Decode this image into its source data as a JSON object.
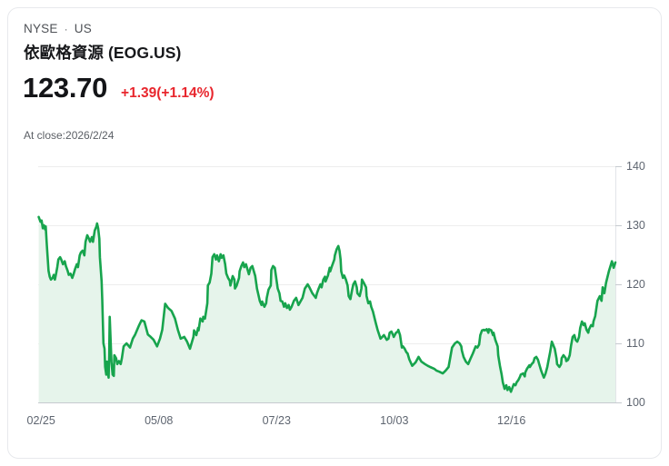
{
  "header": {
    "exchange": "NYSE",
    "separator": "·",
    "region": "US",
    "title": "依歐格資源 (EOG.US)"
  },
  "quote": {
    "price": "123.70",
    "change": "+1.39(+1.14%)",
    "as_of": "At close:2026/2/24",
    "change_color": "#e8262d"
  },
  "chart_data": {
    "type": "area",
    "title": "EOG.US 1-year price",
    "xlabel": "",
    "ylabel": "",
    "ylim": [
      100,
      140
    ],
    "baseline": 100,
    "grid": true,
    "y_axis_side": "right",
    "y_ticks": [
      140,
      130,
      120,
      110,
      100
    ],
    "x_ticks": [
      {
        "label": "02/25",
        "pos": 0.005
      },
      {
        "label": "05/08",
        "pos": 0.209
      },
      {
        "label": "07/23",
        "pos": 0.413
      },
      {
        "label": "10/03",
        "pos": 0.617
      },
      {
        "label": "12/16",
        "pos": 0.82
      }
    ],
    "line_color": "#17a44d",
    "fill_color": "#e6f4eb",
    "grid_color": "#ededed",
    "baseline_color": "#c6cacf",
    "axis_line_color": "#e2e5e9",
    "tick_mark_color": "#c6cacf",
    "points": [
      [
        0.001,
        131.4
      ],
      [
        0.004,
        130.6
      ],
      [
        0.006,
        130.8
      ],
      [
        0.008,
        129.5
      ],
      [
        0.01,
        130.0
      ],
      [
        0.012,
        129.3
      ],
      [
        0.013,
        129.8
      ],
      [
        0.015,
        126.7
      ],
      [
        0.018,
        122.3
      ],
      [
        0.02,
        121.3
      ],
      [
        0.022,
        120.8
      ],
      [
        0.025,
        121.1
      ],
      [
        0.027,
        121.6
      ],
      [
        0.029,
        120.8
      ],
      [
        0.031,
        121.8
      ],
      [
        0.033,
        122.9
      ],
      [
        0.035,
        124.2
      ],
      [
        0.038,
        124.6
      ],
      [
        0.04,
        124.2
      ],
      [
        0.043,
        123.4
      ],
      [
        0.046,
        123.9
      ],
      [
        0.048,
        123.1
      ],
      [
        0.051,
        122.3
      ],
      [
        0.053,
        121.6
      ],
      [
        0.056,
        121.8
      ],
      [
        0.059,
        121.1
      ],
      [
        0.061,
        121.6
      ],
      [
        0.064,
        122.6
      ],
      [
        0.067,
        123.4
      ],
      [
        0.069,
        122.9
      ],
      [
        0.072,
        124.9
      ],
      [
        0.074,
        125.4
      ],
      [
        0.077,
        125.7
      ],
      [
        0.08,
        124.9
      ],
      [
        0.082,
        127.2
      ],
      [
        0.085,
        128.3
      ],
      [
        0.088,
        127.7
      ],
      [
        0.09,
        127.2
      ],
      [
        0.093,
        128.0
      ],
      [
        0.095,
        127.2
      ],
      [
        0.098,
        129.1
      ],
      [
        0.101,
        129.8
      ],
      [
        0.102,
        130.3
      ],
      [
        0.104,
        129.5
      ],
      [
        0.106,
        127.7
      ],
      [
        0.107,
        124.6
      ],
      [
        0.11,
        120.5
      ],
      [
        0.111,
        117.4
      ],
      [
        0.113,
        110.0
      ],
      [
        0.115,
        109.1
      ],
      [
        0.116,
        106.0
      ],
      [
        0.118,
        104.7
      ],
      [
        0.119,
        106.9
      ],
      [
        0.121,
        104.9
      ],
      [
        0.122,
        104.2
      ],
      [
        0.123,
        108.0
      ],
      [
        0.124,
        114.5
      ],
      [
        0.127,
        106.9
      ],
      [
        0.129,
        104.7
      ],
      [
        0.131,
        104.5
      ],
      [
        0.132,
        108.0
      ],
      [
        0.135,
        107.5
      ],
      [
        0.137,
        106.5
      ],
      [
        0.14,
        107.0
      ],
      [
        0.143,
        106.5
      ],
      [
        0.145,
        107.5
      ],
      [
        0.148,
        109.5
      ],
      [
        0.153,
        110.0
      ],
      [
        0.159,
        109.3
      ],
      [
        0.164,
        110.8
      ],
      [
        0.168,
        111.5
      ],
      [
        0.175,
        113.1
      ],
      [
        0.179,
        113.9
      ],
      [
        0.184,
        113.7
      ],
      [
        0.19,
        111.5
      ],
      [
        0.195,
        111.1
      ],
      [
        0.2,
        110.6
      ],
      [
        0.206,
        109.5
      ],
      [
        0.211,
        110.8
      ],
      [
        0.215,
        112.3
      ],
      [
        0.22,
        116.7
      ],
      [
        0.225,
        116.0
      ],
      [
        0.231,
        115.5
      ],
      [
        0.237,
        114.2
      ],
      [
        0.242,
        112.3
      ],
      [
        0.247,
        110.8
      ],
      [
        0.253,
        111.1
      ],
      [
        0.258,
        110.3
      ],
      [
        0.263,
        109.1
      ],
      [
        0.269,
        111.1
      ],
      [
        0.27,
        112.2
      ],
      [
        0.274,
        111.4
      ],
      [
        0.277,
        112.6
      ],
      [
        0.278,
        112.2
      ],
      [
        0.281,
        114.2
      ],
      [
        0.285,
        113.7
      ],
      [
        0.286,
        114.5
      ],
      [
        0.289,
        114.2
      ],
      [
        0.293,
        116.8
      ],
      [
        0.294,
        119.8
      ],
      [
        0.297,
        120.3
      ],
      [
        0.3,
        121.8
      ],
      [
        0.302,
        124.6
      ],
      [
        0.305,
        125.1
      ],
      [
        0.308,
        124.2
      ],
      [
        0.31,
        124.9
      ],
      [
        0.313,
        123.9
      ],
      [
        0.316,
        125.1
      ],
      [
        0.318,
        124.5
      ],
      [
        0.321,
        124.9
      ],
      [
        0.324,
        123.4
      ],
      [
        0.326,
        121.8
      ],
      [
        0.329,
        121.1
      ],
      [
        0.332,
        120.6
      ],
      [
        0.333,
        119.8
      ],
      [
        0.337,
        121.4
      ],
      [
        0.34,
        120.8
      ],
      [
        0.341,
        119.3
      ],
      [
        0.344,
        119.8
      ],
      [
        0.348,
        121.1
      ],
      [
        0.349,
        122.2
      ],
      [
        0.352,
        123.1
      ],
      [
        0.355,
        123.7
      ],
      [
        0.357,
        122.9
      ],
      [
        0.36,
        123.4
      ],
      [
        0.363,
        122.4
      ],
      [
        0.365,
        121.7
      ],
      [
        0.368,
        122.8
      ],
      [
        0.371,
        123.1
      ],
      [
        0.373,
        122.4
      ],
      [
        0.376,
        121.4
      ],
      [
        0.379,
        119.3
      ],
      [
        0.381,
        118.5
      ],
      [
        0.384,
        117.2
      ],
      [
        0.387,
        116.5
      ],
      [
        0.388,
        117.1
      ],
      [
        0.392,
        116.2
      ],
      [
        0.395,
        116.8
      ],
      [
        0.396,
        117.7
      ],
      [
        0.399,
        119.1
      ],
      [
        0.403,
        119.8
      ],
      [
        0.404,
        122.4
      ],
      [
        0.407,
        123.1
      ],
      [
        0.41,
        122.8
      ],
      [
        0.412,
        121.4
      ],
      [
        0.415,
        119.3
      ],
      [
        0.418,
        118.5
      ],
      [
        0.42,
        117.2
      ],
      [
        0.423,
        117.1
      ],
      [
        0.426,
        116.2
      ],
      [
        0.428,
        116.8
      ],
      [
        0.431,
        116.0
      ],
      [
        0.434,
        116.5
      ],
      [
        0.436,
        115.7
      ],
      [
        0.439,
        116.2
      ],
      [
        0.443,
        117.2
      ],
      [
        0.447,
        117.7
      ],
      [
        0.451,
        116.5
      ],
      [
        0.458,
        117.7
      ],
      [
        0.462,
        119.3
      ],
      [
        0.467,
        120.0
      ],
      [
        0.47,
        119.5
      ],
      [
        0.475,
        118.5
      ],
      [
        0.481,
        117.7
      ],
      [
        0.483,
        118.5
      ],
      [
        0.486,
        119.3
      ],
      [
        0.489,
        120.0
      ],
      [
        0.491,
        119.5
      ],
      [
        0.494,
        120.8
      ],
      [
        0.497,
        121.3
      ],
      [
        0.498,
        120.5
      ],
      [
        0.502,
        121.5
      ],
      [
        0.505,
        122.8
      ],
      [
        0.506,
        122.2
      ],
      [
        0.509,
        123.1
      ],
      [
        0.513,
        124.2
      ],
      [
        0.514,
        124.9
      ],
      [
        0.517,
        125.9
      ],
      [
        0.52,
        126.5
      ],
      [
        0.522,
        125.7
      ],
      [
        0.524,
        124.2
      ],
      [
        0.525,
        122.2
      ],
      [
        0.528,
        121.1
      ],
      [
        0.53,
        121.5
      ],
      [
        0.533,
        120.8
      ],
      [
        0.536,
        119.8
      ],
      [
        0.538,
        118.0
      ],
      [
        0.541,
        117.5
      ],
      [
        0.544,
        119.1
      ],
      [
        0.546,
        120.0
      ],
      [
        0.549,
        120.5
      ],
      [
        0.552,
        119.5
      ],
      [
        0.553,
        118.5
      ],
      [
        0.557,
        118.0
      ],
      [
        0.56,
        119.3
      ],
      [
        0.561,
        120.8
      ],
      [
        0.564,
        120.3
      ],
      [
        0.568,
        119.5
      ],
      [
        0.569,
        118.0
      ],
      [
        0.572,
        116.8
      ],
      [
        0.575,
        117.1
      ],
      [
        0.577,
        116.2
      ],
      [
        0.58,
        115.4
      ],
      [
        0.583,
        114.2
      ],
      [
        0.585,
        113.4
      ],
      [
        0.588,
        112.3
      ],
      [
        0.591,
        111.4
      ],
      [
        0.593,
        110.8
      ],
      [
        0.596,
        111.1
      ],
      [
        0.599,
        111.4
      ],
      [
        0.601,
        111.1
      ],
      [
        0.604,
        110.6
      ],
      [
        0.607,
        110.8
      ],
      [
        0.609,
        111.8
      ],
      [
        0.612,
        112.0
      ],
      [
        0.615,
        111.4
      ],
      [
        0.616,
        111.1
      ],
      [
        0.62,
        111.8
      ],
      [
        0.623,
        112.0
      ],
      [
        0.624,
        112.3
      ],
      [
        0.627,
        111.4
      ],
      [
        0.63,
        109.3
      ],
      [
        0.632,
        109.5
      ],
      [
        0.635,
        109.1
      ],
      [
        0.638,
        108.5
      ],
      [
        0.64,
        108.3
      ],
      [
        0.643,
        107.3
      ],
      [
        0.648,
        106.2
      ],
      [
        0.654,
        106.8
      ],
      [
        0.659,
        107.7
      ],
      [
        0.664,
        106.9
      ],
      [
        0.67,
        106.5
      ],
      [
        0.675,
        106.2
      ],
      [
        0.679,
        106.0
      ],
      [
        0.686,
        105.7
      ],
      [
        0.69,
        105.4
      ],
      [
        0.695,
        105.2
      ],
      [
        0.701,
        104.9
      ],
      [
        0.706,
        105.4
      ],
      [
        0.711,
        106.0
      ],
      [
        0.717,
        109.3
      ],
      [
        0.722,
        110.0
      ],
      [
        0.726,
        110.3
      ],
      [
        0.73,
        110.0
      ],
      [
        0.733,
        109.5
      ],
      [
        0.734,
        108.8
      ],
      [
        0.737,
        107.7
      ],
      [
        0.741,
        106.9
      ],
      [
        0.745,
        106.5
      ],
      [
        0.748,
        107.2
      ],
      [
        0.753,
        108.3
      ],
      [
        0.758,
        109.5
      ],
      [
        0.761,
        109.3
      ],
      [
        0.764,
        109.8
      ],
      [
        0.766,
        111.4
      ],
      [
        0.769,
        112.2
      ],
      [
        0.772,
        112.3
      ],
      [
        0.774,
        112.2
      ],
      [
        0.777,
        112.4
      ],
      [
        0.78,
        111.8
      ],
      [
        0.781,
        112.4
      ],
      [
        0.785,
        112.2
      ],
      [
        0.788,
        111.4
      ],
      [
        0.789,
        111.8
      ],
      [
        0.792,
        110.6
      ],
      [
        0.796,
        109.5
      ],
      [
        0.797,
        108.0
      ],
      [
        0.8,
        106.2
      ],
      [
        0.803,
        104.7
      ],
      [
        0.805,
        103.4
      ],
      [
        0.808,
        102.3
      ],
      [
        0.811,
        102.9
      ],
      [
        0.813,
        102.1
      ],
      [
        0.816,
        102.6
      ],
      [
        0.819,
        101.8
      ],
      [
        0.821,
        102.3
      ],
      [
        0.824,
        103.1
      ],
      [
        0.827,
        102.9
      ],
      [
        0.829,
        103.4
      ],
      [
        0.832,
        103.8
      ],
      [
        0.835,
        104.4
      ],
      [
        0.836,
        104.7
      ],
      [
        0.84,
        104.9
      ],
      [
        0.843,
        104.4
      ],
      [
        0.844,
        105.1
      ],
      [
        0.847,
        105.7
      ],
      [
        0.851,
        106.3
      ],
      [
        0.852,
        106.0
      ],
      [
        0.855,
        106.5
      ],
      [
        0.858,
        106.8
      ],
      [
        0.86,
        107.5
      ],
      [
        0.863,
        107.7
      ],
      [
        0.866,
        107.2
      ],
      [
        0.868,
        106.5
      ],
      [
        0.871,
        105.5
      ],
      [
        0.874,
        104.7
      ],
      [
        0.876,
        104.2
      ],
      [
        0.879,
        104.9
      ],
      [
        0.882,
        106.0
      ],
      [
        0.884,
        107.0
      ],
      [
        0.887,
        108.5
      ],
      [
        0.89,
        110.3
      ],
      [
        0.892,
        109.8
      ],
      [
        0.895,
        109.1
      ],
      [
        0.898,
        107.5
      ],
      [
        0.899,
        106.5
      ],
      [
        0.903,
        106.0
      ],
      [
        0.906,
        106.5
      ],
      [
        0.907,
        107.5
      ],
      [
        0.91,
        108.0
      ],
      [
        0.914,
        107.5
      ],
      [
        0.915,
        107.0
      ],
      [
        0.918,
        107.2
      ],
      [
        0.921,
        108.0
      ],
      [
        0.923,
        109.5
      ],
      [
        0.926,
        111.1
      ],
      [
        0.929,
        111.4
      ],
      [
        0.931,
        110.6
      ],
      [
        0.934,
        110.3
      ],
      [
        0.937,
        111.1
      ],
      [
        0.939,
        112.6
      ],
      [
        0.942,
        113.7
      ],
      [
        0.945,
        113.1
      ],
      [
        0.947,
        113.4
      ],
      [
        0.95,
        112.3
      ],
      [
        0.953,
        111.8
      ],
      [
        0.954,
        112.3
      ],
      [
        0.958,
        113.1
      ],
      [
        0.961,
        112.9
      ],
      [
        0.962,
        113.7
      ],
      [
        0.965,
        114.6
      ],
      [
        0.969,
        117.2
      ],
      [
        0.973,
        118.0
      ],
      [
        0.976,
        117.2
      ],
      [
        0.978,
        119.5
      ],
      [
        0.981,
        118.5
      ],
      [
        0.984,
        120.3
      ],
      [
        0.989,
        122.3
      ],
      [
        0.994,
        123.9
      ],
      [
        0.997,
        122.8
      ],
      [
        1.0,
        123.7
      ]
    ]
  }
}
